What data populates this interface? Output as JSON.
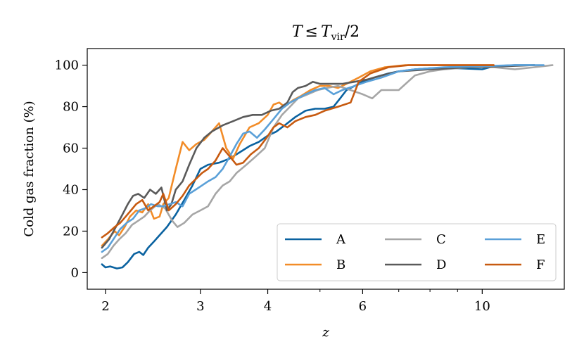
{
  "chart_data": {
    "type": "line",
    "title": "T ≤ T_vir/2",
    "title_parts": {
      "t": "T",
      "le": "≤",
      "tvir": "T",
      "vir_sub": "vir",
      "tail": "/2"
    },
    "xlabel": "z",
    "ylabel": "Cold gas fraction (%)",
    "x_scale": "log",
    "xlim": [
      1.85,
      14.2
    ],
    "ylim": [
      -8,
      108
    ],
    "x_ticks": [
      2,
      3,
      4,
      6,
      10
    ],
    "x_tick_labels": [
      "2",
      "3",
      "4",
      "6",
      "10"
    ],
    "x_minor_ticks": [
      5,
      7,
      8,
      9
    ],
    "y_ticks": [
      0,
      20,
      40,
      60,
      80,
      100
    ],
    "y_tick_labels": [
      "0",
      "20",
      "40",
      "60",
      "80",
      "100"
    ],
    "grid": false,
    "legend": {
      "placement": "lower-right",
      "ncol": 3,
      "order": [
        "A",
        "C",
        "E",
        "B",
        "D",
        "F"
      ]
    },
    "series": [
      {
        "name": "A",
        "color": "#0a62a0",
        "points": [
          [
            1.97,
            4
          ],
          [
            2.0,
            2.5
          ],
          [
            2.04,
            3
          ],
          [
            2.1,
            2
          ],
          [
            2.15,
            2.5
          ],
          [
            2.2,
            5
          ],
          [
            2.26,
            9
          ],
          [
            2.31,
            10
          ],
          [
            2.35,
            8.5
          ],
          [
            2.4,
            12
          ],
          [
            2.46,
            15
          ],
          [
            2.52,
            18
          ],
          [
            2.6,
            22
          ],
          [
            2.7,
            28
          ],
          [
            2.8,
            35
          ],
          [
            2.9,
            42
          ],
          [
            3.0,
            50
          ],
          [
            3.1,
            52
          ],
          [
            3.25,
            53
          ],
          [
            3.4,
            55
          ],
          [
            3.55,
            58
          ],
          [
            3.7,
            61
          ],
          [
            3.85,
            63
          ],
          [
            4.0,
            66
          ],
          [
            4.15,
            68
          ],
          [
            4.3,
            71
          ],
          [
            4.5,
            75
          ],
          [
            4.7,
            78
          ],
          [
            4.9,
            79
          ],
          [
            5.1,
            79
          ],
          [
            5.3,
            80
          ],
          [
            5.45,
            84
          ],
          [
            5.6,
            88
          ],
          [
            5.8,
            90
          ],
          [
            6.0,
            92
          ],
          [
            6.3,
            94
          ],
          [
            6.7,
            96
          ],
          [
            7.0,
            97
          ],
          [
            7.5,
            98
          ],
          [
            8.0,
            98.5
          ],
          [
            9.0,
            98.5
          ],
          [
            10.0,
            98
          ],
          [
            10.5,
            99.5
          ],
          [
            11.5,
            100
          ],
          [
            12.5,
            100
          ]
        ]
      },
      {
        "name": "B",
        "color": "#f28c28",
        "points": [
          [
            1.97,
            13
          ],
          [
            2.02,
            16
          ],
          [
            2.08,
            20
          ],
          [
            2.12,
            18
          ],
          [
            2.17,
            22
          ],
          [
            2.22,
            27
          ],
          [
            2.28,
            30
          ],
          [
            2.34,
            29
          ],
          [
            2.4,
            33
          ],
          [
            2.46,
            26
          ],
          [
            2.52,
            27
          ],
          [
            2.56,
            33
          ],
          [
            2.62,
            36
          ],
          [
            2.7,
            50
          ],
          [
            2.78,
            63
          ],
          [
            2.86,
            59
          ],
          [
            2.95,
            62
          ],
          [
            3.05,
            64
          ],
          [
            3.15,
            68
          ],
          [
            3.25,
            72
          ],
          [
            3.35,
            60
          ],
          [
            3.45,
            55
          ],
          [
            3.55,
            62
          ],
          [
            3.7,
            70
          ],
          [
            3.85,
            72
          ],
          [
            4.0,
            76
          ],
          [
            4.1,
            81
          ],
          [
            4.2,
            82
          ],
          [
            4.3,
            80
          ],
          [
            4.45,
            83
          ],
          [
            4.6,
            85
          ],
          [
            4.8,
            88
          ],
          [
            5.0,
            90
          ],
          [
            5.2,
            90
          ],
          [
            5.4,
            89
          ],
          [
            5.6,
            91
          ],
          [
            5.9,
            94
          ],
          [
            6.2,
            97
          ],
          [
            6.6,
            99
          ],
          [
            7.2,
            100
          ],
          [
            8.5,
            100
          ],
          [
            10.5,
            100
          ]
        ]
      },
      {
        "name": "C",
        "color": "#a6a6a6",
        "points": [
          [
            1.97,
            7
          ],
          [
            2.02,
            9
          ],
          [
            2.07,
            13
          ],
          [
            2.12,
            16
          ],
          [
            2.18,
            19
          ],
          [
            2.24,
            23
          ],
          [
            2.3,
            25
          ],
          [
            2.36,
            27
          ],
          [
            2.42,
            30
          ],
          [
            2.5,
            33
          ],
          [
            2.58,
            31
          ],
          [
            2.66,
            25
          ],
          [
            2.72,
            22
          ],
          [
            2.8,
            24
          ],
          [
            2.9,
            28
          ],
          [
            3.0,
            30
          ],
          [
            3.1,
            32
          ],
          [
            3.2,
            38
          ],
          [
            3.3,
            42
          ],
          [
            3.4,
            44
          ],
          [
            3.5,
            48
          ],
          [
            3.65,
            52
          ],
          [
            3.8,
            56
          ],
          [
            3.95,
            60
          ],
          [
            4.1,
            70
          ],
          [
            4.25,
            76
          ],
          [
            4.4,
            80
          ],
          [
            4.55,
            84
          ],
          [
            4.75,
            86
          ],
          [
            4.95,
            88
          ],
          [
            5.15,
            89
          ],
          [
            5.4,
            90
          ],
          [
            5.7,
            88
          ],
          [
            6.0,
            86
          ],
          [
            6.25,
            84
          ],
          [
            6.5,
            88
          ],
          [
            7.0,
            88
          ],
          [
            7.5,
            95
          ],
          [
            8.0,
            97
          ],
          [
            8.5,
            98
          ],
          [
            9.5,
            99
          ],
          [
            10.5,
            99
          ],
          [
            11.5,
            98
          ],
          [
            12.5,
            99
          ],
          [
            13.5,
            100
          ]
        ]
      },
      {
        "name": "D",
        "color": "#5a5a5a",
        "points": [
          [
            1.97,
            12
          ],
          [
            2.03,
            16
          ],
          [
            2.09,
            22
          ],
          [
            2.15,
            28
          ],
          [
            2.2,
            33
          ],
          [
            2.25,
            37
          ],
          [
            2.3,
            38
          ],
          [
            2.36,
            36
          ],
          [
            2.42,
            40
          ],
          [
            2.48,
            38
          ],
          [
            2.54,
            41
          ],
          [
            2.6,
            30
          ],
          [
            2.65,
            33
          ],
          [
            2.7,
            40
          ],
          [
            2.78,
            44
          ],
          [
            2.86,
            52
          ],
          [
            2.95,
            60
          ],
          [
            3.05,
            65
          ],
          [
            3.15,
            68
          ],
          [
            3.3,
            71
          ],
          [
            3.45,
            73
          ],
          [
            3.6,
            75
          ],
          [
            3.75,
            76
          ],
          [
            3.9,
            76
          ],
          [
            4.05,
            78
          ],
          [
            4.2,
            79
          ],
          [
            4.35,
            82
          ],
          [
            4.45,
            87
          ],
          [
            4.55,
            89
          ],
          [
            4.7,
            90
          ],
          [
            4.85,
            92
          ],
          [
            5.0,
            91
          ],
          [
            5.2,
            91
          ],
          [
            5.5,
            91
          ],
          [
            5.8,
            92
          ],
          [
            6.1,
            93
          ],
          [
            6.5,
            95
          ],
          [
            7.0,
            97
          ],
          [
            8.0,
            98
          ],
          [
            9.5,
            99
          ],
          [
            11.0,
            99.5
          ],
          [
            12.5,
            100
          ]
        ]
      },
      {
        "name": "E",
        "color": "#5aa0d8",
        "points": [
          [
            1.97,
            10
          ],
          [
            2.02,
            12
          ],
          [
            2.08,
            17
          ],
          [
            2.13,
            21
          ],
          [
            2.19,
            24
          ],
          [
            2.25,
            26
          ],
          [
            2.31,
            30
          ],
          [
            2.37,
            31
          ],
          [
            2.43,
            33
          ],
          [
            2.5,
            32
          ],
          [
            2.56,
            32
          ],
          [
            2.63,
            33
          ],
          [
            2.7,
            34
          ],
          [
            2.78,
            32
          ],
          [
            2.86,
            38
          ],
          [
            2.94,
            40
          ],
          [
            3.02,
            42
          ],
          [
            3.1,
            44
          ],
          [
            3.2,
            46
          ],
          [
            3.3,
            50
          ],
          [
            3.4,
            56
          ],
          [
            3.5,
            62
          ],
          [
            3.6,
            67
          ],
          [
            3.7,
            68
          ],
          [
            3.82,
            65
          ],
          [
            3.95,
            69
          ],
          [
            4.1,
            74
          ],
          [
            4.25,
            79
          ],
          [
            4.4,
            82
          ],
          [
            4.55,
            84
          ],
          [
            4.7,
            86
          ],
          [
            4.9,
            88
          ],
          [
            5.1,
            89
          ],
          [
            5.3,
            86
          ],
          [
            5.5,
            88
          ],
          [
            5.8,
            90
          ],
          [
            6.1,
            92
          ],
          [
            6.5,
            94
          ],
          [
            7.0,
            97
          ],
          [
            7.5,
            98
          ],
          [
            8.5,
            99
          ],
          [
            10.0,
            99.5
          ],
          [
            11.5,
            100
          ],
          [
            13.0,
            100
          ]
        ]
      },
      {
        "name": "F",
        "color": "#c75a10",
        "points": [
          [
            1.97,
            17
          ],
          [
            2.02,
            19
          ],
          [
            2.08,
            22
          ],
          [
            2.13,
            24
          ],
          [
            2.18,
            27
          ],
          [
            2.23,
            30
          ],
          [
            2.28,
            33
          ],
          [
            2.34,
            35
          ],
          [
            2.4,
            30
          ],
          [
            2.46,
            32
          ],
          [
            2.52,
            34
          ],
          [
            2.56,
            38
          ],
          [
            2.62,
            30
          ],
          [
            2.7,
            33
          ],
          [
            2.78,
            37
          ],
          [
            2.86,
            42
          ],
          [
            2.94,
            45
          ],
          [
            3.02,
            48
          ],
          [
            3.1,
            50
          ],
          [
            3.2,
            54
          ],
          [
            3.3,
            60
          ],
          [
            3.4,
            56
          ],
          [
            3.5,
            52
          ],
          [
            3.6,
            53
          ],
          [
            3.72,
            57
          ],
          [
            3.85,
            60
          ],
          [
            3.98,
            65
          ],
          [
            4.1,
            70
          ],
          [
            4.2,
            72
          ],
          [
            4.35,
            70
          ],
          [
            4.5,
            73
          ],
          [
            4.7,
            75
          ],
          [
            4.9,
            76
          ],
          [
            5.1,
            78
          ],
          [
            5.4,
            80
          ],
          [
            5.7,
            82
          ],
          [
            5.9,
            92
          ],
          [
            6.2,
            96
          ],
          [
            6.7,
            99
          ],
          [
            7.3,
            100
          ],
          [
            8.5,
            100
          ],
          [
            10.5,
            100
          ]
        ]
      }
    ]
  }
}
